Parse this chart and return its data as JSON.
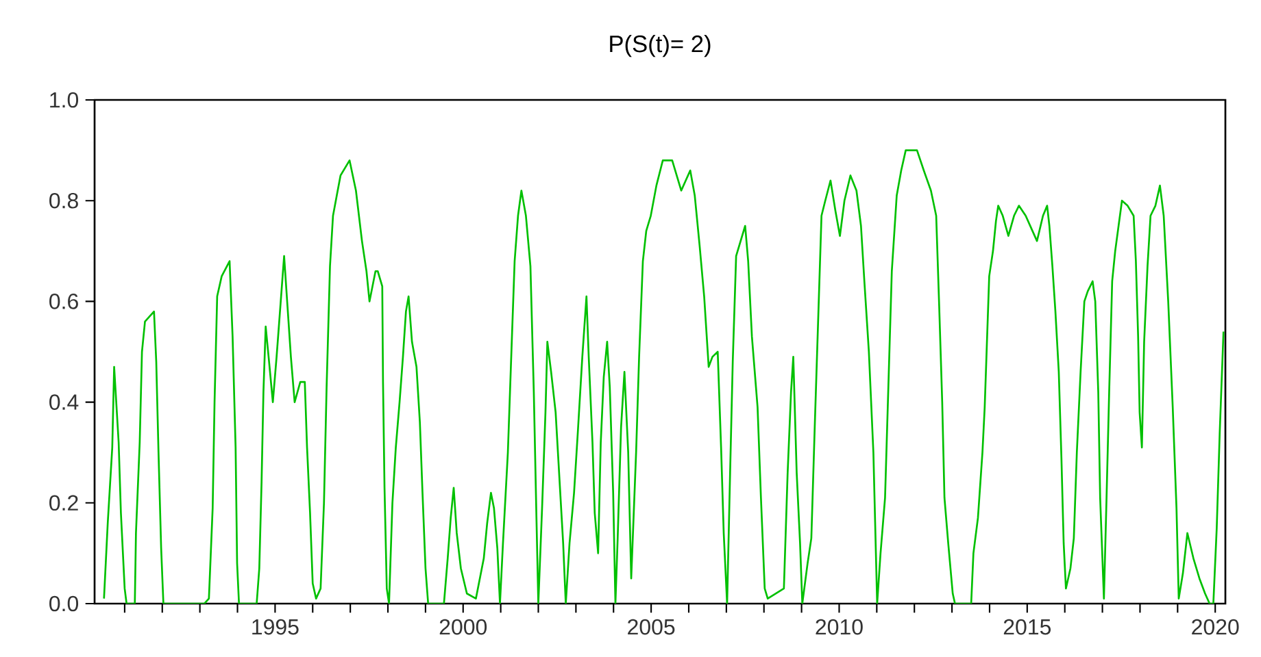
{
  "chart_data": {
    "type": "line",
    "title": "P(S(t)= 2)",
    "x": [
      1990.45,
      1990.55,
      1990.67,
      1990.72,
      1990.84,
      1990.9,
      1991.0,
      1991.05,
      1991.27,
      1991.3,
      1991.4,
      1991.46,
      1991.54,
      1991.78,
      1991.84,
      1991.9,
      1991.97,
      1992.03,
      1993.12,
      1993.24,
      1993.34,
      1993.39,
      1993.46,
      1993.58,
      1993.79,
      1993.87,
      1993.95,
      1993.99,
      1994.04,
      1994.51,
      1994.58,
      1994.64,
      1994.69,
      1994.75,
      1994.84,
      1994.94,
      1995.04,
      1995.15,
      1995.24,
      1995.33,
      1995.42,
      1995.52,
      1995.67,
      1995.79,
      1995.85,
      1995.93,
      1996.0,
      1996.09,
      1996.21,
      1996.3,
      1996.37,
      1996.46,
      1996.54,
      1996.64,
      1996.74,
      1996.98,
      1997.15,
      1997.31,
      1997.43,
      1997.51,
      1997.67,
      1997.73,
      1997.85,
      1997.87,
      1997.91,
      1997.97,
      1998.03,
      1998.12,
      1998.21,
      1998.31,
      1998.4,
      1998.48,
      1998.55,
      1998.64,
      1998.76,
      1998.85,
      1998.92,
      1999.0,
      1999.07,
      1999.49,
      1999.59,
      1999.67,
      1999.75,
      1999.83,
      1999.94,
      2000.1,
      2000.34,
      2000.55,
      2000.64,
      2000.74,
      2000.82,
      2000.91,
      2000.98,
      2001.06,
      2001.19,
      2001.27,
      2001.37,
      2001.46,
      2001.55,
      2001.67,
      2001.79,
      2001.88,
      2001.95,
      2002.0,
      2002.1,
      2002.19,
      2002.24,
      2002.34,
      2002.46,
      2002.56,
      2002.66,
      2002.73,
      2002.83,
      2002.95,
      2003.05,
      2003.17,
      2003.28,
      2003.34,
      2003.44,
      2003.5,
      2003.59,
      2003.66,
      2003.74,
      2003.83,
      2003.9,
      2003.99,
      2004.05,
      2004.11,
      2004.2,
      2004.29,
      2004.39,
      2004.47,
      2004.6,
      2004.68,
      2004.78,
      2004.87,
      2004.99,
      2005.14,
      2005.31,
      2005.56,
      2005.8,
      2006.04,
      2006.16,
      2006.29,
      2006.41,
      2006.53,
      2006.63,
      2006.77,
      2006.86,
      2006.93,
      2007.02,
      2007.1,
      2007.17,
      2007.26,
      2007.38,
      2007.5,
      2007.58,
      2007.68,
      2007.83,
      2007.92,
      2008.02,
      2008.1,
      2008.53,
      2008.63,
      2008.72,
      2008.78,
      2008.87,
      2008.96,
      2009.02,
      2009.16,
      2009.26,
      2009.35,
      2009.44,
      2009.53,
      2009.63,
      2009.77,
      2009.9,
      2010.02,
      2010.14,
      2010.3,
      2010.46,
      2010.58,
      2010.67,
      2010.79,
      2010.91,
      2011.01,
      2011.1,
      2011.22,
      2011.32,
      2011.4,
      2011.53,
      2011.65,
      2011.77,
      2012.07,
      2012.25,
      2012.44,
      2012.58,
      2012.66,
      2012.74,
      2012.8,
      2012.9,
      2013.02,
      2013.08,
      2013.51,
      2013.57,
      2013.69,
      2013.81,
      2013.87,
      2013.93,
      2013.99,
      2014.09,
      2014.17,
      2014.23,
      2014.35,
      2014.5,
      2014.65,
      2014.78,
      2014.96,
      2015.14,
      2015.26,
      2015.42,
      2015.53,
      2015.59,
      2015.67,
      2015.75,
      2015.84,
      2015.91,
      2015.97,
      2016.03,
      2016.15,
      2016.24,
      2016.32,
      2016.42,
      2016.52,
      2016.61,
      2016.74,
      2016.81,
      2016.89,
      2016.94,
      2017.04,
      2017.11,
      2017.18,
      2017.26,
      2017.34,
      2017.43,
      2017.52,
      2017.67,
      2017.83,
      2017.89,
      2017.95,
      2017.99,
      2018.05,
      2018.11,
      2018.2,
      2018.28,
      2018.41,
      2018.53,
      2018.63,
      2018.75,
      2018.87,
      2018.97,
      2019.03,
      2019.14,
      2019.26,
      2019.42,
      2019.58,
      2019.73,
      2019.85,
      2019.95,
      2020.04,
      2020.12,
      2020.22
    ],
    "series": [
      {
        "color": "#00c000",
        "values": [
          0.01,
          0.16,
          0.31,
          0.47,
          0.32,
          0.18,
          0.03,
          0,
          0,
          0.14,
          0.32,
          0.5,
          0.56,
          0.58,
          0.48,
          0.3,
          0.11,
          0,
          0,
          0.01,
          0.19,
          0.4,
          0.61,
          0.65,
          0.68,
          0.53,
          0.31,
          0.08,
          0,
          0,
          0.07,
          0.24,
          0.42,
          0.55,
          0.48,
          0.4,
          0.49,
          0.6,
          0.69,
          0.59,
          0.49,
          0.4,
          0.44,
          0.44,
          0.31,
          0.18,
          0.04,
          0.01,
          0.03,
          0.2,
          0.43,
          0.67,
          0.77,
          0.81,
          0.85,
          0.88,
          0.82,
          0.72,
          0.66,
          0.6,
          0.66,
          0.66,
          0.63,
          0.44,
          0.23,
          0.03,
          0,
          0.2,
          0.31,
          0.4,
          0.49,
          0.58,
          0.61,
          0.52,
          0.47,
          0.36,
          0.22,
          0.07,
          0,
          0,
          0.09,
          0.17,
          0.23,
          0.14,
          0.07,
          0.02,
          0.01,
          0.09,
          0.16,
          0.22,
          0.19,
          0.11,
          0,
          0.12,
          0.3,
          0.47,
          0.68,
          0.77,
          0.82,
          0.77,
          0.67,
          0.42,
          0.17,
          0,
          0.19,
          0.38,
          0.52,
          0.46,
          0.38,
          0.25,
          0.12,
          0,
          0.12,
          0.22,
          0.34,
          0.49,
          0.61,
          0.49,
          0.32,
          0.18,
          0.1,
          0.32,
          0.45,
          0.52,
          0.43,
          0.22,
          0,
          0.13,
          0.35,
          0.46,
          0.3,
          0.05,
          0.3,
          0.49,
          0.68,
          0.74,
          0.77,
          0.83,
          0.88,
          0.88,
          0.82,
          0.86,
          0.81,
          0.71,
          0.61,
          0.47,
          0.49,
          0.5,
          0.31,
          0.14,
          0,
          0.26,
          0.48,
          0.69,
          0.72,
          0.75,
          0.68,
          0.53,
          0.39,
          0.21,
          0.03,
          0.01,
          0.03,
          0.26,
          0.42,
          0.49,
          0.26,
          0.12,
          0,
          0.08,
          0.13,
          0.35,
          0.56,
          0.77,
          0.8,
          0.84,
          0.78,
          0.73,
          0.8,
          0.85,
          0.82,
          0.75,
          0.64,
          0.5,
          0.3,
          0,
          0.1,
          0.21,
          0.46,
          0.66,
          0.81,
          0.86,
          0.9,
          0.9,
          0.86,
          0.82,
          0.77,
          0.59,
          0.4,
          0.21,
          0.12,
          0.02,
          0,
          0,
          0.1,
          0.17,
          0.3,
          0.39,
          0.52,
          0.65,
          0.7,
          0.76,
          0.79,
          0.77,
          0.73,
          0.77,
          0.79,
          0.77,
          0.74,
          0.72,
          0.77,
          0.79,
          0.75,
          0.67,
          0.58,
          0.46,
          0.29,
          0.12,
          0.03,
          0.07,
          0.13,
          0.3,
          0.46,
          0.6,
          0.62,
          0.64,
          0.6,
          0.42,
          0.21,
          0.01,
          0.21,
          0.42,
          0.64,
          0.7,
          0.75,
          0.8,
          0.79,
          0.77,
          0.68,
          0.53,
          0.38,
          0.31,
          0.52,
          0.67,
          0.77,
          0.79,
          0.83,
          0.77,
          0.6,
          0.39,
          0.19,
          0.01,
          0.06,
          0.14,
          0.09,
          0.05,
          0.02,
          0,
          0,
          0.15,
          0.34,
          0.54
        ]
      }
    ],
    "xlim": [
      1990.2,
      2020.27
    ],
    "xticks": [
      {
        "value": 1991,
        "label": null
      },
      {
        "value": 1992,
        "label": null
      },
      {
        "value": 1993,
        "label": null
      },
      {
        "value": 1994,
        "label": null
      },
      1995,
      {
        "value": 1996,
        "label": null
      },
      {
        "value": 1997,
        "label": null
      },
      {
        "value": 1998,
        "label": null
      },
      {
        "value": 1999,
        "label": null
      },
      2000,
      {
        "value": 2001,
        "label": null
      },
      {
        "value": 2002,
        "label": null
      },
      {
        "value": 2003,
        "label": null
      },
      {
        "value": 2004,
        "label": null
      },
      2005,
      {
        "value": 2006,
        "label": null
      },
      {
        "value": 2007,
        "label": null
      },
      {
        "value": 2008,
        "label": null
      },
      {
        "value": 2009,
        "label": null
      },
      2010,
      {
        "value": 2011,
        "label": null
      },
      {
        "value": 2012,
        "label": null
      },
      {
        "value": 2013,
        "label": null
      },
      {
        "value": 2014,
        "label": null
      },
      2015,
      {
        "value": 2016,
        "label": null
      },
      {
        "value": 2017,
        "label": null
      },
      {
        "value": 2018,
        "label": null
      },
      {
        "value": 2019,
        "label": null
      },
      2020
    ],
    "ylim": [
      0,
      1
    ],
    "yticks": [
      {
        "value": 0,
        "label": "0.0"
      },
      0.2,
      0.4,
      0.6,
      0.8,
      {
        "value": 1,
        "label": "1.0"
      }
    ],
    "marker": "none",
    "line_style": "solid"
  }
}
